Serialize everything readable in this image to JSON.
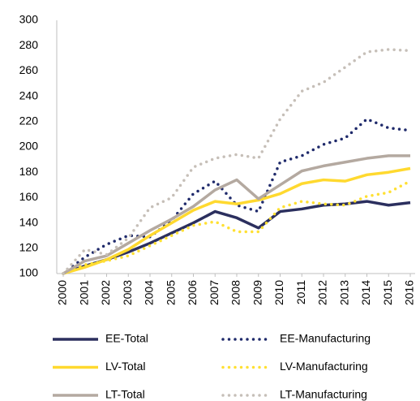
{
  "chart_data": {
    "type": "line",
    "x": [
      2000,
      2001,
      2002,
      2003,
      2004,
      2005,
      2006,
      2007,
      2008,
      2009,
      2010,
      2011,
      2012,
      2013,
      2014,
      2015,
      2016
    ],
    "xlim": [
      2000,
      2016
    ],
    "ylim": [
      100,
      300
    ],
    "yticks": [
      100,
      120,
      140,
      160,
      180,
      200,
      220,
      240,
      260,
      280,
      300
    ],
    "grid": false,
    "series": [
      {
        "name": "EE-Total",
        "color": "#2b2f5e",
        "style": "solid",
        "values": [
          100,
          106,
          111,
          117,
          124,
          132,
          140,
          149,
          144,
          136,
          149,
          151,
          154,
          155,
          157,
          154,
          156
        ]
      },
      {
        "name": "EE-Manufacturing",
        "color": "#1f2a6b",
        "style": "dotted",
        "values": [
          100,
          113,
          123,
          130,
          129,
          142,
          163,
          173,
          154,
          149,
          188,
          193,
          202,
          207,
          222,
          215,
          213
        ]
      },
      {
        "name": "LV-Total",
        "color": "#ffd92f",
        "style": "solid",
        "values": [
          100,
          105,
          111,
          119,
          130,
          140,
          150,
          157,
          155,
          158,
          163,
          171,
          174,
          173,
          178,
          180,
          183
        ]
      },
      {
        "name": "LV-Manufacturing",
        "color": "#ffe033",
        "style": "dotted",
        "values": [
          100,
          107,
          110,
          114,
          122,
          130,
          138,
          141,
          133,
          133,
          152,
          157,
          155,
          154,
          161,
          164,
          173
        ]
      },
      {
        "name": "LT-Total",
        "color": "#b4a9a0",
        "style": "solid",
        "values": [
          100,
          110,
          114,
          124,
          134,
          143,
          153,
          166,
          174,
          159,
          170,
          181,
          185,
          188,
          191,
          193,
          193
        ]
      },
      {
        "name": "LT-Manufacturing",
        "color": "#c6bfb8",
        "style": "dotted",
        "values": [
          100,
          119,
          115,
          128,
          152,
          160,
          184,
          191,
          194,
          191,
          222,
          244,
          251,
          263,
          275,
          277,
          276
        ]
      }
    ]
  }
}
